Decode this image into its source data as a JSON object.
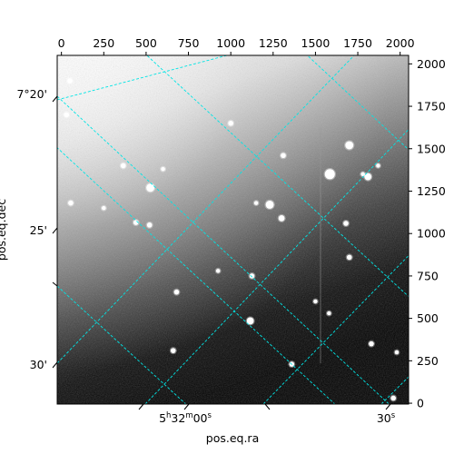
{
  "chart_data": {
    "type": "heatmap",
    "subtype": "astronomical-image-wcs",
    "colormap": "gray",
    "grid": true,
    "grid_color": "#00e5e5",
    "pixel_axes": {
      "top": {
        "ticks": [
          0,
          250,
          500,
          750,
          1000,
          1250,
          1500,
          1750,
          2000
        ],
        "labels": [
          "0",
          "250",
          "500",
          "750",
          "1000",
          "1250",
          "1500",
          "1750",
          "2000"
        ],
        "xlim": [
          -25,
          2050
        ]
      },
      "right": {
        "ticks": [
          0,
          250,
          500,
          750,
          1000,
          1250,
          1500,
          1750,
          2000
        ],
        "labels": [
          "0",
          "250",
          "500",
          "750",
          "1000",
          "1250",
          "1500",
          "1750",
          "2000"
        ],
        "ylim": [
          -5,
          2050
        ]
      }
    },
    "world_axes": {
      "bottom": {
        "label": "pos.eq.ra",
        "ticks": [
          {
            "hour": "5",
            "h": "h",
            "minute": "32",
            "m": "m",
            "second": "00",
            "s": "s"
          },
          {
            "second": "30",
            "s": "s"
          }
        ]
      },
      "left": {
        "label": "pos.eq.dec",
        "ticks": [
          "7°20'",
          "25'",
          "30'"
        ]
      }
    },
    "stars": [
      {
        "x": 1700,
        "y": 1520,
        "mag": 7
      },
      {
        "x": 1585,
        "y": 1350,
        "mag": 9
      },
      {
        "x": 1810,
        "y": 1335,
        "mag": 6
      },
      {
        "x": 525,
        "y": 1270,
        "mag": 7
      },
      {
        "x": 1230,
        "y": 1170,
        "mag": 7
      },
      {
        "x": 1300,
        "y": 1090,
        "mag": 5
      },
      {
        "x": 55,
        "y": 1180,
        "mag": 4
      },
      {
        "x": 520,
        "y": 1050,
        "mag": 4
      },
      {
        "x": 440,
        "y": 1065,
        "mag": 4
      },
      {
        "x": 1680,
        "y": 1060,
        "mag": 4
      },
      {
        "x": 1700,
        "y": 860,
        "mag": 4
      },
      {
        "x": 1125,
        "y": 750,
        "mag": 4
      },
      {
        "x": 680,
        "y": 655,
        "mag": 4
      },
      {
        "x": 1115,
        "y": 485,
        "mag": 6
      },
      {
        "x": 660,
        "y": 310,
        "mag": 4
      },
      {
        "x": 1360,
        "y": 230,
        "mag": 4
      },
      {
        "x": 1830,
        "y": 350,
        "mag": 4
      },
      {
        "x": 1960,
        "y": 30,
        "mag": 4
      },
      {
        "x": 1000,
        "y": 1650,
        "mag": 4
      },
      {
        "x": 1310,
        "y": 1460,
        "mag": 4
      },
      {
        "x": 30,
        "y": 1700,
        "mag": 4
      },
      {
        "x": 365,
        "y": 1400,
        "mag": 4
      },
      {
        "x": 600,
        "y": 1380,
        "mag": 3
      },
      {
        "x": 250,
        "y": 1150,
        "mag": 3
      },
      {
        "x": 1150,
        "y": 1180,
        "mag": 3
      },
      {
        "x": 925,
        "y": 780,
        "mag": 3
      },
      {
        "x": 1870,
        "y": 1400,
        "mag": 3
      },
      {
        "x": 50,
        "y": 1900,
        "mag": 4
      },
      {
        "x": 1980,
        "y": 300,
        "mag": 3
      },
      {
        "x": 1500,
        "y": 600,
        "mag": 3
      },
      {
        "x": 1580,
        "y": 530,
        "mag": 3
      },
      {
        "x": 1780,
        "y": 1350,
        "mag": 3
      }
    ]
  }
}
